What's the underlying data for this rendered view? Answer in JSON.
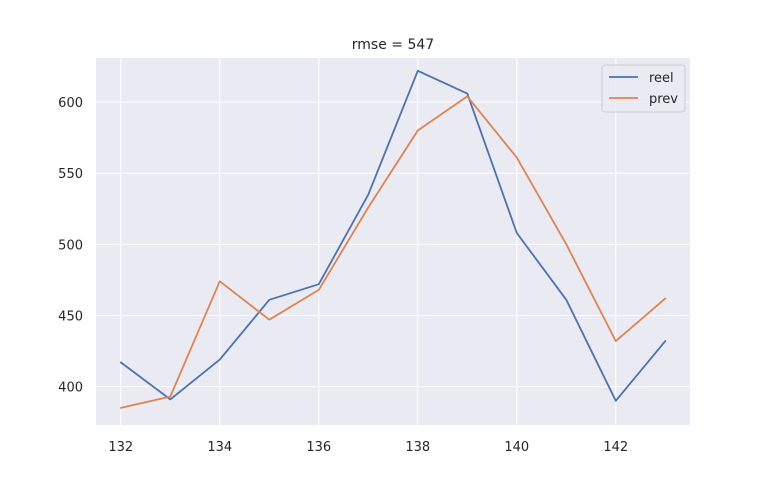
{
  "chart_data": {
    "type": "line",
    "title": "rmse = 547",
    "xlabel": "",
    "ylabel": "",
    "x": [
      132,
      133,
      134,
      135,
      136,
      137,
      138,
      139,
      140,
      141,
      142,
      143
    ],
    "xlim": [
      131.5,
      143.5
    ],
    "ylim": [
      373,
      631
    ],
    "xticks": [
      132,
      134,
      136,
      138,
      140,
      142
    ],
    "yticks": [
      400,
      450,
      500,
      550,
      600
    ],
    "grid": true,
    "legend": "top-right",
    "series": [
      {
        "name": "reel",
        "color": "#4c72b0",
        "values": [
          417,
          391,
          419,
          461,
          472,
          535,
          622,
          606,
          508,
          461,
          390,
          432
        ]
      },
      {
        "name": "prev",
        "color": "#dd8452",
        "values": [
          385,
          393,
          474,
          447,
          468,
          526,
          580,
          604,
          561,
          500,
          432,
          462
        ]
      }
    ],
    "colors": {
      "plot_background": "#eaeaf2",
      "grid": "#ffffff",
      "text": "#262626"
    }
  }
}
